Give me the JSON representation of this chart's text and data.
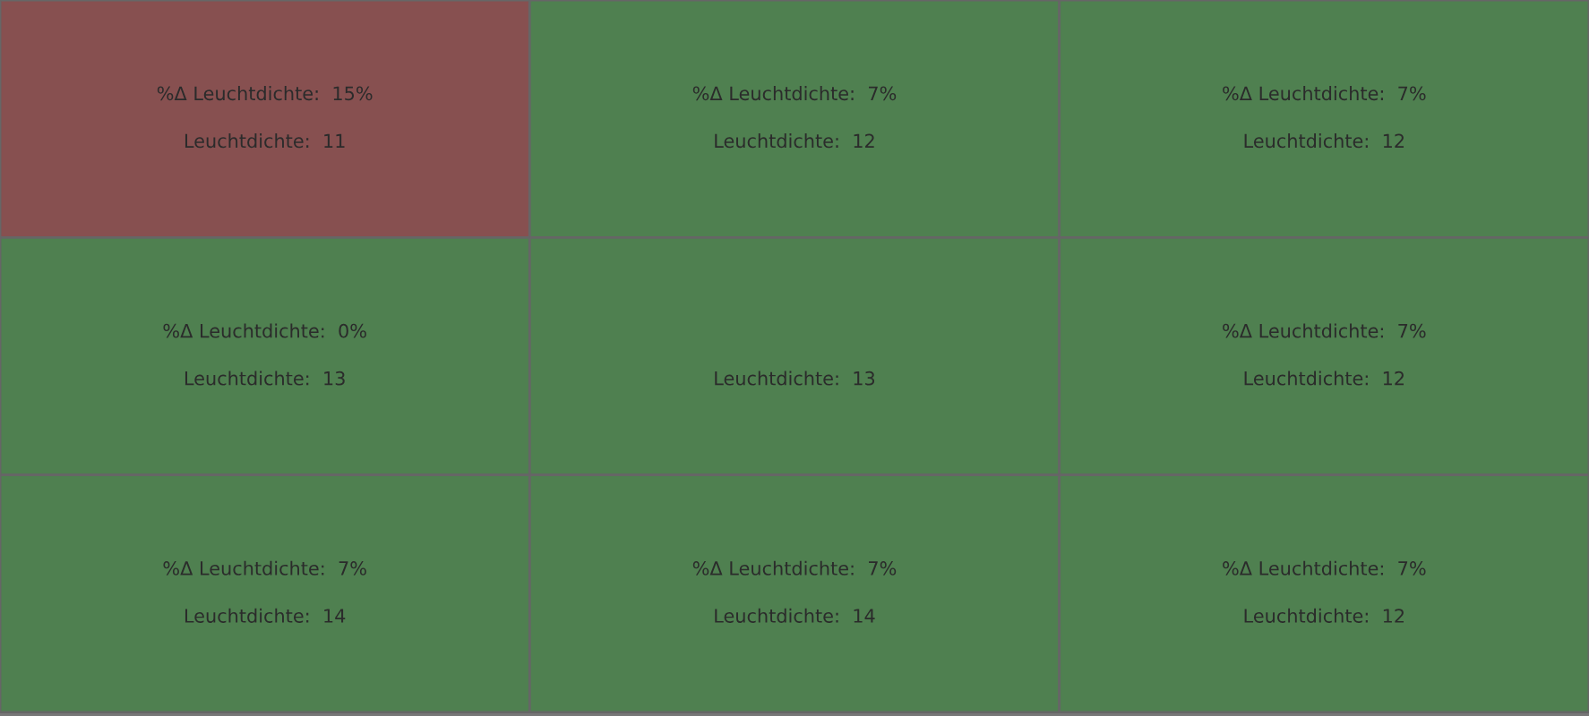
{
  "chart_data": {
    "type": "heatmap",
    "cell_labels": [
      [
        "Leuchtdichte:  11",
        "Leuchtdichte:  12",
        "Leuchtdichte:  12"
      ],
      [
        "Leuchtdichte:  13",
        "Leuchtdichte:  13",
        "Leuchtdichte:  12"
      ],
      [
        "Leuchtdichte:  14",
        "Leuchtdichte:  14",
        "Leuchtdichte:  12"
      ]
    ],
    "categories": [
      null,
      null,
      null
    ],
    "y_categories": [
      null,
      null,
      null
    ],
    "tick_labels": false,
    "cells": [
      [
        11,
        12,
        12
      ],
      [
        13,
        13,
        12
      ],
      [
        14,
        14,
        12
      ]
    ],
    "annotations": [
      "%Δ Leuchtdichte:  15%",
      "%Δ Leuchtdichte:  7%",
      "%Δ Leuchtdichte:  7%",
      "%Δ Leuchtdichte:  0%",
      null,
      "%Δ Leuchtdichte:  7%",
      "%Δ Leuchtdichte:  7%",
      "%Δ Leuchtdichte:  7%",
      "%Δ Leuchtdichte:  7%"
    ],
    "colors": [
      [
        "#875050",
        "#4f8050",
        "#4f8050"
      ],
      [
        "#4f8050",
        "#4f8050",
        "#4f8050"
      ],
      [
        "#4f8050",
        "#4f8050",
        "#4f8050"
      ]
    ]
  }
}
